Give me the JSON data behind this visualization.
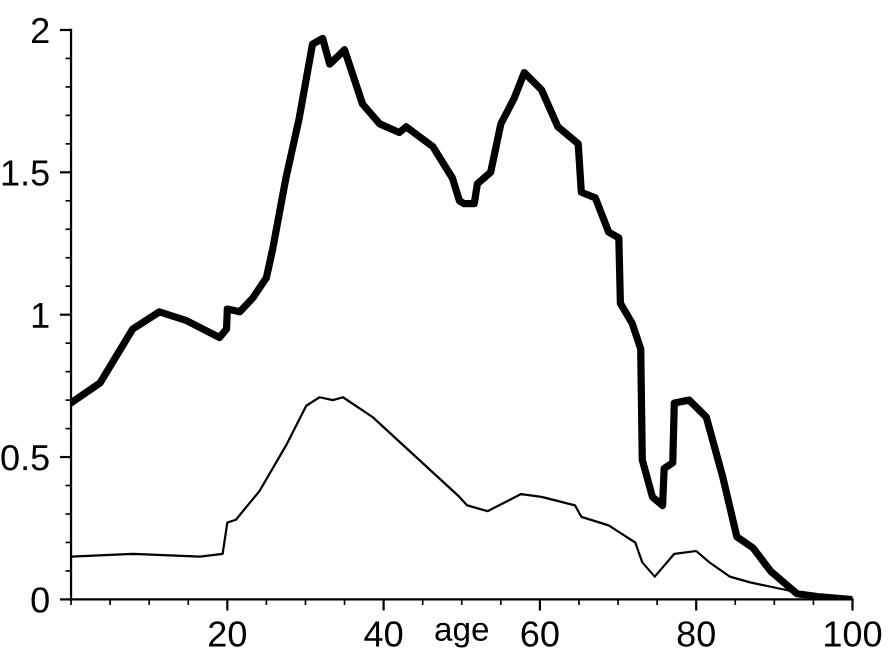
{
  "chart_data": {
    "type": "line",
    "xlabel": "age",
    "xlim": [
      0,
      100
    ],
    "ylim": [
      0,
      2
    ],
    "xticks": [
      20,
      40,
      60,
      80,
      100
    ],
    "yticks": [
      0,
      0.5,
      1,
      1.5,
      2
    ],
    "grid": false,
    "legend": false,
    "marker": "none",
    "line_style": "solid",
    "series": [
      {
        "color": "#000000",
        "x": [
          0,
          3.7,
          7.9,
          11.3,
          14.7,
          19,
          19.9,
          20,
          21.6,
          23.3,
          25,
          25.8,
          27.5,
          29.2,
          30.9,
          32.2,
          33.1,
          35,
          37.3,
          39.5,
          42,
          42.9,
          46.3,
          48.8,
          49.7,
          50.3,
          51.6,
          52,
          53.7,
          55,
          56.7,
          58,
          60.2,
          62.3,
          64.9,
          65.3,
          67.1,
          68.8,
          70.1,
          70.3,
          71.8,
          72.9,
          73.1,
          74.4,
          75.7,
          75.9,
          77,
          77.2,
          79.1,
          81.3,
          83.4,
          85.2,
          87.3,
          89.5,
          92.9,
          95.5,
          99.8
        ],
        "values": [
          0.69,
          0.76,
          0.95,
          1.01,
          0.98,
          0.92,
          0.95,
          1.02,
          1.01,
          1.06,
          1.13,
          1.23,
          1.48,
          1.69,
          1.95,
          1.97,
          1.88,
          1.93,
          1.74,
          1.67,
          1.64,
          1.66,
          1.59,
          1.48,
          1.4,
          1.39,
          1.39,
          1.46,
          1.5,
          1.67,
          1.76,
          1.85,
          1.79,
          1.66,
          1.6,
          1.43,
          1.41,
          1.29,
          1.27,
          1.04,
          0.97,
          0.88,
          0.49,
          0.36,
          0.33,
          0.46,
          0.48,
          0.69,
          0.7,
          0.64,
          0.43,
          0.22,
          0.18,
          0.1,
          0.02,
          0.01,
          0.0
        ]
      },
      {
        "color": "#000000",
        "x": [
          0,
          7.9,
          16.5,
          19.4,
          20,
          21.1,
          24.1,
          27.5,
          30.1,
          31.8,
          33.5,
          34.8,
          38.6,
          49.7,
          50.7,
          53.3,
          57.6,
          60.2,
          64.5,
          65.3,
          68.8,
          72.2,
          73.1,
          74.7,
          77.2,
          80,
          81.7,
          84.3,
          86.9,
          90.3,
          93.8,
          99.8
        ],
        "values": [
          0.15,
          0.16,
          0.15,
          0.16,
          0.27,
          0.28,
          0.38,
          0.54,
          0.68,
          0.71,
          0.7,
          0.71,
          0.64,
          0.36,
          0.33,
          0.31,
          0.37,
          0.36,
          0.33,
          0.29,
          0.26,
          0.2,
          0.13,
          0.08,
          0.16,
          0.17,
          0.13,
          0.08,
          0.06,
          0.04,
          0.02,
          0.0
        ]
      }
    ]
  }
}
